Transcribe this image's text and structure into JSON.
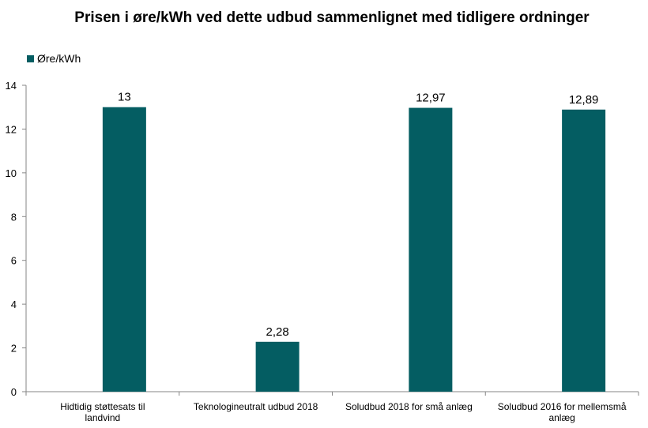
{
  "chart_data": {
    "type": "bar",
    "title": "Prisen i øre/kWh ved dette udbud sammenlignet med tidligere ordninger",
    "categories": [
      "Hidtidig støttesats til landvind",
      "Teknologineutralt udbud 2018",
      "Soludbud 2018 for små anlæg",
      "Soludbud 2016 for mellemsmå anlæg"
    ],
    "series": [
      {
        "name": "Øre/kWh",
        "values": [
          13,
          2.28,
          12.97,
          12.89
        ],
        "labels": [
          "13",
          "2,28",
          "12,97",
          "12,89"
        ],
        "color": "#045D62"
      }
    ],
    "xlabel": "",
    "ylabel": "",
    "ylim": [
      0,
      14
    ],
    "yticks": [
      0,
      2,
      4,
      6,
      8,
      10,
      12,
      14
    ],
    "grid": false,
    "legend": "top-left"
  }
}
